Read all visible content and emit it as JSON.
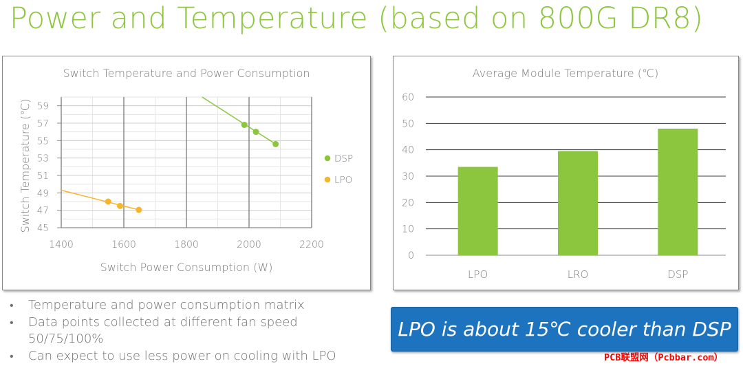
{
  "title": "Power and Temperature (based on 800G DR8)",
  "bullets": [
    {
      "text": "Temperature and power consumption matrix"
    },
    {
      "text": "Data points collected at different fan speed",
      "text2": "50/75/100%"
    },
    {
      "text": "Can expect to use less power on cooling with LPO"
    }
  ],
  "callout": "LPO is about 15℃ cooler than DSP",
  "watermark": "PCB联盟网（Pcbbar.com）",
  "colors": {
    "title": "#8cc63f",
    "dsp": "#8cc63f",
    "lpo": "#f7b52c",
    "bar": "#8cc63f",
    "callout": "#1e73be"
  },
  "chart_data": [
    {
      "type": "scatter",
      "title": "Switch Temperature and Power Consumption",
      "xlabel": "Switch Power Consumption (W)",
      "ylabel": "Switch Temperature (℃)",
      "xlim": [
        1400,
        2200
      ],
      "ylim": [
        45,
        60
      ],
      "xticks": [
        1400,
        1600,
        1800,
        2000,
        2200
      ],
      "yticks": [
        45,
        47,
        49,
        51,
        53,
        55,
        57,
        59
      ],
      "legend_position": "right",
      "series": [
        {
          "name": "DSP",
          "color": "#8cc63f",
          "points": [
            [
              1985,
              56.8
            ],
            [
              2022,
              56.0
            ],
            [
              2085,
              54.6
            ]
          ],
          "trend": [
            [
              1850,
              60.0
            ],
            [
              2085,
              54.6
            ]
          ]
        },
        {
          "name": "LPO",
          "color": "#f7b52c",
          "points": [
            [
              1550,
              48.0
            ],
            [
              1588,
              47.5
            ],
            [
              1648,
              47.05
            ]
          ],
          "trend": [
            [
              1400,
              49.3
            ],
            [
              1648,
              47.05
            ]
          ]
        }
      ]
    },
    {
      "type": "bar",
      "title": "Average Module Temperature (℃)",
      "categories": [
        "LPO",
        "LRO",
        "DSP"
      ],
      "values": [
        33.5,
        39.5,
        48
      ],
      "ylim": [
        0,
        60
      ],
      "yticks": [
        0,
        10,
        20,
        30,
        40,
        50,
        60
      ],
      "color": "#8cc63f"
    }
  ]
}
